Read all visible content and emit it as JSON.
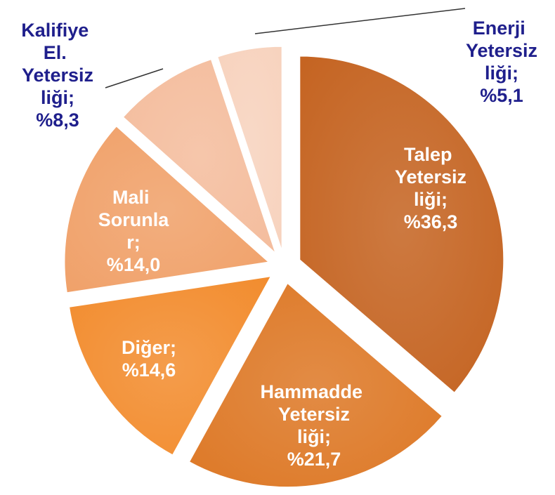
{
  "chart_data": {
    "type": "pie",
    "categories": [
      "Talep Yetersizliği;",
      "Hammadde Yetersizliği;",
      "Diğer;",
      "Mali Sorunlar;",
      "Kalifiye El. Yetersizliği;",
      "Enerji Yetersizliği;"
    ],
    "values": [
      36.3,
      21.7,
      14.6,
      14.0,
      8.3,
      5.1
    ],
    "value_labels": [
      "%36,3",
      "%21,7",
      "%14,6",
      "%14,0",
      "%8,3",
      "%5,1"
    ],
    "colors": [
      "#c4621f",
      "#dd7724",
      "#f28b2c",
      "#f0a068",
      "#f4bc9c",
      "#f7d2bd"
    ]
  }
}
